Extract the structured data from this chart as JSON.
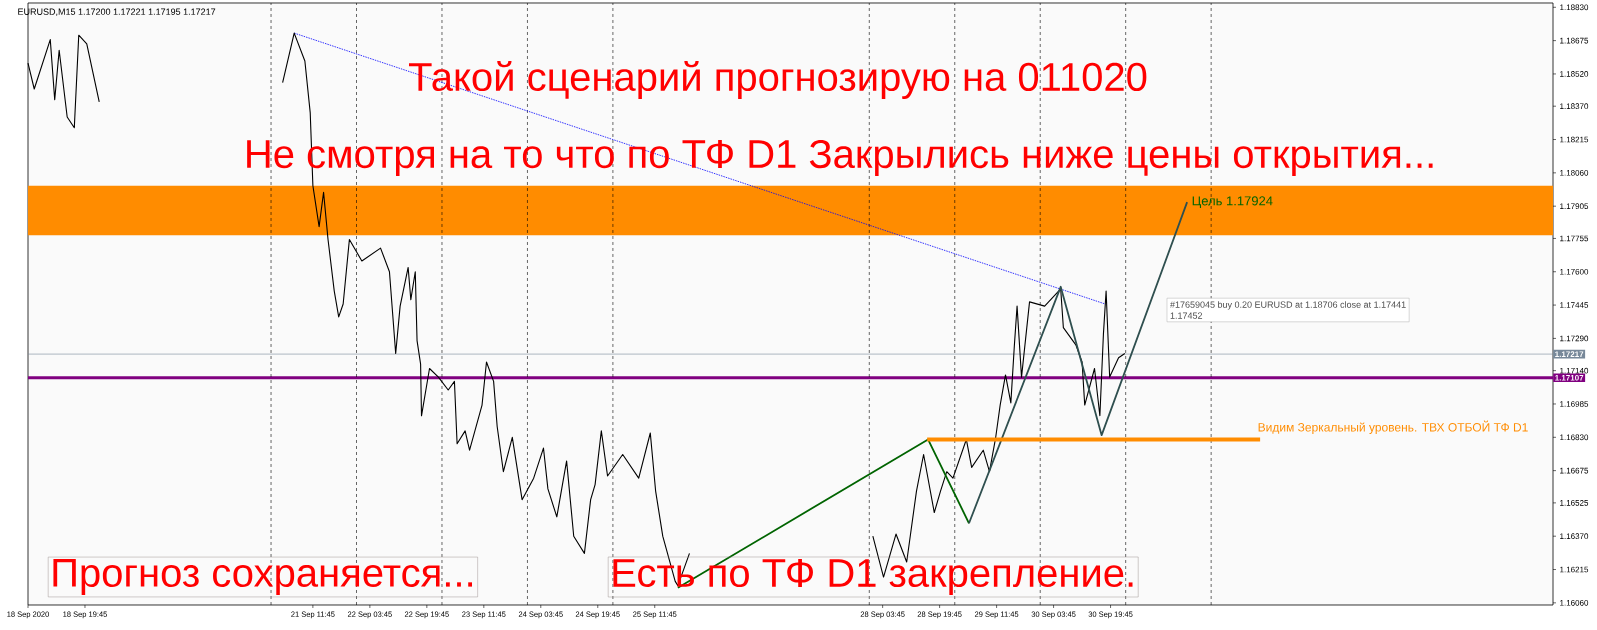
{
  "chart_data": {
    "type": "line",
    "title": "EURUSD,M15  1.17200 1.17221 1.17195 1.17217",
    "marker": "none",
    "xlim": [
      "2020-09-18T03:45",
      "2020-10-06T00:00"
    ],
    "ylim": [
      1.1605,
      1.1885
    ],
    "xticks": [
      {
        "value": "2020-09-18T03:45",
        "label": "18 Sep 2020"
      },
      {
        "value": "2020-09-18T19:45",
        "label": "18 Sep 19:45"
      },
      {
        "value": "2020-09-21T11:45",
        "label": "21 Sep 11:45"
      },
      {
        "value": "2020-09-22T03:45",
        "label": "22 Sep 03:45"
      },
      {
        "value": "2020-09-22T19:45",
        "label": "22 Sep 19:45"
      },
      {
        "value": "2020-09-23T11:45",
        "label": "23 Sep 11:45"
      },
      {
        "value": "2020-09-24T03:45",
        "label": "24 Sep 03:45"
      },
      {
        "value": "2020-09-24T19:45",
        "label": "24 Sep 19:45"
      },
      {
        "value": "2020-09-25T11:45",
        "label": "25 Sep 11:45"
      },
      {
        "value": "2020-09-28T03:45",
        "label": "28 Sep 03:45"
      },
      {
        "value": "2020-09-28T19:45",
        "label": "28 Sep 19:45"
      },
      {
        "value": "2020-09-29T11:45",
        "label": "29 Sep 11:45"
      },
      {
        "value": "2020-09-30T03:45",
        "label": "30 Sep 03:45"
      },
      {
        "value": "2020-09-30T19:45",
        "label": "30 Sep 19:45"
      }
    ],
    "yticks": [
      {
        "value": 1.1883,
        "label": "1.18830"
      },
      {
        "value": 1.18675,
        "label": "1.18675"
      },
      {
        "value": 1.1852,
        "label": "1.18520"
      },
      {
        "value": 1.1837,
        "label": "1.18370"
      },
      {
        "value": 1.18215,
        "label": "1.18215"
      },
      {
        "value": 1.1806,
        "label": "1.18060"
      },
      {
        "value": 1.17905,
        "label": "1.17905"
      },
      {
        "value": 1.17755,
        "label": "1.17755"
      },
      {
        "value": 1.176,
        "label": "1.17600"
      },
      {
        "value": 1.17445,
        "label": "1.17445"
      },
      {
        "value": 1.1729,
        "label": "1.17290"
      },
      {
        "value": 1.1714,
        "label": "1.17140"
      },
      {
        "value": 1.16985,
        "label": "1.16985"
      },
      {
        "value": 1.1683,
        "label": "1.16830"
      },
      {
        "value": 1.16675,
        "label": "1.16675"
      },
      {
        "value": 1.16525,
        "label": "1.16525"
      },
      {
        "value": 1.1637,
        "label": "1.16370"
      },
      {
        "value": 1.16215,
        "label": "1.16215"
      },
      {
        "value": 1.1606,
        "label": "1.16060"
      }
    ],
    "series": [
      {
        "color": "#000000",
        "line_style": "solid",
        "x": [
          "2020-09-18T03:45",
          "2020-09-18T05:30",
          "2020-09-18T10:00",
          "2020-09-18T11:15",
          "2020-09-18T12:30",
          "2020-09-18T14:45",
          "2020-09-18T16:45",
          "2020-09-18T18:00",
          "2020-09-18T20:15",
          "2020-09-18T23:45",
          "2020-09-19T12:00",
          "2020-09-21T03:15",
          "2020-09-21T06:30",
          "2020-09-21T09:30",
          "2020-09-21T11:00",
          "2020-09-21T11:45",
          "2020-09-21T13:30",
          "2020-09-21T14:45",
          "2020-09-21T16:00",
          "2020-09-21T17:45",
          "2020-09-21T19:00",
          "2020-09-21T20:15",
          "2020-09-21T22:00",
          "2020-09-22T01:30",
          "2020-09-22T06:45",
          "2020-09-22T09:15",
          "2020-09-22T11:00",
          "2020-09-22T12:15",
          "2020-09-22T14:30",
          "2020-09-22T15:15",
          "2020-09-22T16:30",
          "2020-09-22T17:00",
          "2020-09-22T18:00",
          "2020-09-22T18:15",
          "2020-09-22T20:30",
          "2020-09-22T23:00",
          "2020-09-23T01:45",
          "2020-09-23T03:30",
          "2020-09-23T04:15",
          "2020-09-23T06:30",
          "2020-09-23T07:45",
          "2020-09-23T11:15",
          "2020-09-23T12:30",
          "2020-09-23T14:30",
          "2020-09-23T15:30",
          "2020-09-23T17:15",
          "2020-09-23T19:45",
          "2020-09-23T22:30",
          "2020-09-24T01:45",
          "2020-09-24T04:30",
          "2020-09-24T05:45",
          "2020-09-24T08:15",
          "2020-09-24T11:00",
          "2020-09-24T13:00",
          "2020-09-24T16:00",
          "2020-09-24T17:45",
          "2020-09-24T19:00",
          "2020-09-24T20:45",
          "2020-09-24T22:30",
          "2020-09-25T02:45",
          "2020-09-25T07:15",
          "2020-09-25T10:30",
          "2020-09-25T12:00",
          "2020-09-25T14:00",
          "2020-09-25T17:30",
          "2020-09-25T18:15",
          "2020-09-25T21:30",
          "2020-09-26T12:00",
          "2020-09-28T01:00",
          "2020-09-28T04:00",
          "2020-09-28T07:30",
          "2020-09-28T10:30",
          "2020-09-28T13:15",
          "2020-09-28T15:15",
          "2020-09-28T18:15",
          "2020-09-28T20:00",
          "2020-09-28T21:45",
          "2020-09-28T23:30",
          "2020-09-29T03:15",
          "2020-09-29T04:45",
          "2020-09-29T08:00",
          "2020-09-29T09:45",
          "2020-09-29T11:30",
          "2020-09-29T12:45",
          "2020-09-29T14:15",
          "2020-09-29T15:45",
          "2020-09-29T16:45",
          "2020-09-29T17:30",
          "2020-09-29T18:45",
          "2020-09-29T21:00",
          "2020-09-30T01:15",
          "2020-09-30T05:45",
          "2020-09-30T06:30",
          "2020-09-30T10:00",
          "2020-09-30T11:45",
          "2020-09-30T12:30",
          "2020-09-30T15:15",
          "2020-09-30T16:45",
          "2020-09-30T17:45",
          "2020-09-30T18:30",
          "2020-09-30T19:30",
          "2020-09-30T22:00",
          "2020-09-30T23:45"
        ],
        "values": [
          1.1857,
          1.1845,
          1.1868,
          1.184,
          1.1863,
          1.1832,
          1.1827,
          1.187,
          1.1866,
          1.1839,
          null,
          1.1848,
          1.1871,
          1.1858,
          1.1834,
          1.18,
          1.1781,
          1.1797,
          1.1775,
          1.1751,
          1.1739,
          1.1745,
          1.1775,
          1.1765,
          1.1771,
          1.176,
          1.1722,
          1.1744,
          1.1762,
          1.1747,
          1.176,
          1.1728,
          1.1717,
          1.1693,
          1.1715,
          1.1711,
          1.1705,
          1.1709,
          1.168,
          1.1686,
          1.1677,
          1.1698,
          1.1718,
          1.1709,
          1.1688,
          1.1667,
          1.1683,
          1.1654,
          1.1664,
          1.1678,
          1.1659,
          1.1646,
          1.1672,
          1.1637,
          1.1629,
          1.1654,
          1.1661,
          1.1686,
          1.1665,
          1.1675,
          1.1664,
          1.1685,
          1.1658,
          1.1637,
          1.1616,
          1.1614,
          1.1629,
          null,
          1.1637,
          1.1618,
          1.1638,
          1.1625,
          1.1658,
          1.1675,
          1.1648,
          1.1658,
          1.1667,
          1.1664,
          1.1682,
          1.1669,
          1.1677,
          1.1667,
          1.1683,
          1.1698,
          1.1712,
          1.1699,
          1.1726,
          1.1744,
          1.1711,
          1.1746,
          1.1744,
          1.1752,
          1.1734,
          1.1726,
          1.1718,
          1.1698,
          1.1715,
          1.1693,
          1.1731,
          1.1751,
          1.1711,
          1.172,
          1.1722
        ]
      },
      {
        "color": "#006400",
        "line_style": "solid",
        "x": [
          "2020-09-25T18:15",
          "2020-09-28T16:30",
          "2020-09-29T04:00"
        ],
        "values": [
          1.1613,
          1.1682,
          1.1643
        ]
      },
      {
        "color": "#2f4f4f",
        "line_style": "solid",
        "x": [
          "2020-09-29T04:00",
          "2020-09-30T05:45",
          "2020-09-30T17:15",
          "2020-10-01T17:15"
        ],
        "values": [
          1.1643,
          1.1753,
          1.1684,
          1.17924
        ]
      },
      {
        "color": "#0000ff",
        "line_style": "dotted",
        "x": [
          "2020-09-21T06:30",
          "2020-09-30T18:15"
        ],
        "values": [
          1.1871,
          1.1745
        ]
      },
      {
        "color": "#ff8c00",
        "line_style": "solid",
        "x": [
          "2020-09-28T16:15",
          "2020-10-02T13:45"
        ],
        "values": [
          1.1682,
          1.1682
        ]
      }
    ],
    "bands": [
      {
        "axis": "y",
        "from": 1.1777,
        "to": 1.18,
        "color": "#ff8c00"
      }
    ],
    "ref_lines": [
      {
        "axis": "y",
        "value": 1.17217,
        "label": "1.17217",
        "color": "#778899",
        "line_style": "solid"
      },
      {
        "axis": "y",
        "value": 1.17107,
        "label": "1.17107",
        "color": "#800080",
        "line_style": "solid"
      },
      {
        "axis": "x",
        "value": "2020-09-21T00:00",
        "color": "#000000",
        "line_style": "dashed"
      },
      {
        "axis": "x",
        "value": "2020-09-22T00:00",
        "color": "#000000",
        "line_style": "dashed"
      },
      {
        "axis": "x",
        "value": "2020-09-23T00:00",
        "color": "#000000",
        "line_style": "dashed"
      },
      {
        "axis": "x",
        "value": "2020-09-24T00:00",
        "color": "#000000",
        "line_style": "dashed"
      },
      {
        "axis": "x",
        "value": "2020-09-25T00:00",
        "color": "#000000",
        "line_style": "dashed"
      },
      {
        "axis": "x",
        "value": "2020-09-28T00:00",
        "color": "#000000",
        "line_style": "dashed"
      },
      {
        "axis": "x",
        "value": "2020-09-29T00:00",
        "color": "#000000",
        "line_style": "dashed"
      },
      {
        "axis": "x",
        "value": "2020-09-30T00:00",
        "color": "#000000",
        "line_style": "dashed"
      },
      {
        "axis": "x",
        "value": "2020-10-01T00:00",
        "color": "#000000",
        "line_style": "dashed"
      },
      {
        "axis": "x",
        "value": "2020-10-02T00:00",
        "color": "#000000",
        "line_style": "dashed"
      }
    ],
    "annotations": [
      "Такой сценарий прогнозирую на 011020",
      "Не смотря на то что по ТФ D1 Закрылись ниже цены открытия...",
      "Прогноз сохраняется...",
      "Есть по ТФ D1 закрепление.",
      "#17659045 buy 0.20 EURUSD at 1.18706 close at 1.17441",
      "1.17452",
      {
        "text": "Цель 1.17924",
        "x": "2020-10-01T17:15",
        "y": 1.17924
      },
      {
        "text": "Видим Зеркальный уровень. ТВХ ОТБОЙ ТФ D1",
        "x": "2020-10-02T13:45",
        "y": 1.1682
      }
    ]
  }
}
